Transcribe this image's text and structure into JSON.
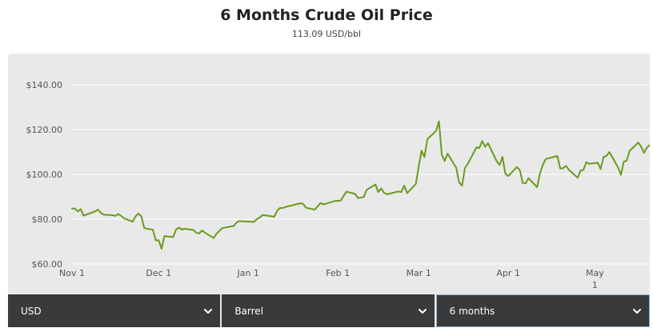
{
  "header": {
    "title": "6 Months Crude Oil Price",
    "subtitle": "113.09 USD/bbl"
  },
  "controls": {
    "currency": "USD",
    "unit": "Barrel",
    "period": "6 months"
  },
  "icons": {
    "dropdown": "chevron-down-icon"
  },
  "colors": {
    "line": "#6a9a1f",
    "panel": "#e9e9e9",
    "grid": "#ffffff",
    "control_bg": "#3a3a3a",
    "control_text": "#ffffff"
  },
  "chart_data": {
    "type": "line",
    "title": "6 Months Crude Oil Price",
    "subtitle": "113.09 USD/bbl",
    "xlabel": "",
    "ylabel": "",
    "ylim": [
      60,
      140
    ],
    "yticks": [
      "$60.00",
      "$80.00",
      "$100.00",
      "$120.00",
      "$140.00"
    ],
    "xticks": [
      "Nov 1",
      "Dec 1",
      "Jan 1",
      "Feb 1",
      "Mar 1",
      "Apr 1",
      "May 1"
    ],
    "grid": true,
    "legend": "none",
    "series": [
      {
        "values": [
          [
            "2021-11-01",
            84.8
          ],
          [
            "2021-11-02",
            84.7
          ],
          [
            "2021-11-03",
            83.5
          ],
          [
            "2021-11-04",
            84.5
          ],
          [
            "2021-11-05",
            81.6
          ],
          [
            "2021-11-08",
            83.0
          ],
          [
            "2021-11-09",
            83.5
          ],
          [
            "2021-11-10",
            84.3
          ],
          [
            "2021-11-11",
            82.8
          ],
          [
            "2021-11-12",
            82.0
          ],
          [
            "2021-11-15",
            81.8
          ],
          [
            "2021-11-16",
            81.5
          ],
          [
            "2021-11-17",
            82.3
          ],
          [
            "2021-11-18",
            81.5
          ],
          [
            "2021-11-19",
            80.4
          ],
          [
            "2021-11-22",
            78.9
          ],
          [
            "2021-11-23",
            81.3
          ],
          [
            "2021-11-24",
            82.5
          ],
          [
            "2021-11-25",
            81.3
          ],
          [
            "2021-11-26",
            76.0
          ],
          [
            "2021-11-29",
            75.3
          ],
          [
            "2021-11-30",
            70.5
          ],
          [
            "2021-12-01",
            70.6
          ],
          [
            "2021-12-02",
            66.8
          ],
          [
            "2021-12-03",
            72.5
          ],
          [
            "2021-12-06",
            72.0
          ],
          [
            "2021-12-07",
            75.4
          ],
          [
            "2021-12-08",
            76.2
          ],
          [
            "2021-12-09",
            75.4
          ],
          [
            "2021-12-10",
            75.7
          ],
          [
            "2021-12-13",
            75.2
          ],
          [
            "2021-12-14",
            74.0
          ],
          [
            "2021-12-15",
            73.6
          ],
          [
            "2021-12-16",
            75.0
          ],
          [
            "2021-12-17",
            74.0
          ],
          [
            "2021-12-20",
            71.6
          ],
          [
            "2021-12-21",
            73.5
          ],
          [
            "2021-12-22",
            74.8
          ],
          [
            "2021-12-23",
            76.0
          ],
          [
            "2021-12-27",
            77.0
          ],
          [
            "2021-12-28",
            78.6
          ],
          [
            "2021-12-29",
            79.2
          ],
          [
            "2021-12-30",
            79.0
          ],
          [
            "2021-12-31",
            79.0
          ],
          [
            "2022-01-03",
            78.8
          ],
          [
            "2022-01-04",
            80.0
          ],
          [
            "2022-01-05",
            80.8
          ],
          [
            "2022-01-06",
            81.9
          ],
          [
            "2022-01-07",
            81.7
          ],
          [
            "2022-01-10",
            81.1
          ],
          [
            "2022-01-11",
            83.7
          ],
          [
            "2022-01-12",
            85.0
          ],
          [
            "2022-01-13",
            85.0
          ],
          [
            "2022-01-14",
            85.5
          ],
          [
            "2022-01-18",
            86.8
          ],
          [
            "2022-01-19",
            87.1
          ],
          [
            "2022-01-20",
            86.9
          ],
          [
            "2022-01-21",
            85.1
          ],
          [
            "2022-01-24",
            84.3
          ],
          [
            "2022-01-25",
            85.6
          ],
          [
            "2022-01-26",
            87.3
          ],
          [
            "2022-01-27",
            86.6
          ],
          [
            "2022-01-28",
            87.0
          ],
          [
            "2022-01-31",
            88.1
          ],
          [
            "2022-02-01",
            88.2
          ],
          [
            "2022-02-02",
            88.3
          ],
          [
            "2022-02-03",
            90.3
          ],
          [
            "2022-02-04",
            92.3
          ],
          [
            "2022-02-07",
            91.3
          ],
          [
            "2022-02-08",
            89.4
          ],
          [
            "2022-02-09",
            89.7
          ],
          [
            "2022-02-10",
            89.9
          ],
          [
            "2022-02-11",
            93.1
          ],
          [
            "2022-02-14",
            95.5
          ],
          [
            "2022-02-15",
            92.1
          ],
          [
            "2022-02-16",
            93.7
          ],
          [
            "2022-02-17",
            91.8
          ],
          [
            "2022-02-18",
            91.1
          ],
          [
            "2022-02-22",
            92.4
          ],
          [
            "2022-02-23",
            92.1
          ],
          [
            "2022-02-24",
            95.0
          ],
          [
            "2022-02-25",
            91.6
          ],
          [
            "2022-02-28",
            95.7
          ],
          [
            "2022-03-01",
            103.4
          ],
          [
            "2022-03-02",
            110.6
          ],
          [
            "2022-03-03",
            107.7
          ],
          [
            "2022-03-04",
            115.7
          ],
          [
            "2022-03-07",
            119.4
          ],
          [
            "2022-03-08",
            123.7
          ],
          [
            "2022-03-09",
            108.7
          ],
          [
            "2022-03-10",
            106.0
          ],
          [
            "2022-03-11",
            109.3
          ],
          [
            "2022-03-14",
            103.0
          ],
          [
            "2022-03-15",
            96.4
          ],
          [
            "2022-03-16",
            95.0
          ],
          [
            "2022-03-17",
            102.9
          ],
          [
            "2022-03-18",
            104.7
          ],
          [
            "2022-03-21",
            112.1
          ],
          [
            "2022-03-22",
            111.8
          ],
          [
            "2022-03-23",
            114.9
          ],
          [
            "2022-03-24",
            112.3
          ],
          [
            "2022-03-25",
            113.9
          ],
          [
            "2022-03-28",
            105.9
          ],
          [
            "2022-03-29",
            104.2
          ],
          [
            "2022-03-30",
            107.8
          ],
          [
            "2022-03-31",
            100.3
          ],
          [
            "2022-04-01",
            99.3
          ],
          [
            "2022-04-04",
            103.3
          ],
          [
            "2022-04-05",
            101.9
          ],
          [
            "2022-04-06",
            96.2
          ],
          [
            "2022-04-07",
            96.0
          ],
          [
            "2022-04-08",
            98.3
          ],
          [
            "2022-04-11",
            94.3
          ],
          [
            "2022-04-12",
            100.6
          ],
          [
            "2022-04-13",
            104.3
          ],
          [
            "2022-04-14",
            106.9
          ],
          [
            "2022-04-18",
            108.2
          ],
          [
            "2022-04-19",
            102.6
          ],
          [
            "2022-04-20",
            102.8
          ],
          [
            "2022-04-21",
            103.8
          ],
          [
            "2022-04-22",
            102.1
          ],
          [
            "2022-04-25",
            98.5
          ],
          [
            "2022-04-26",
            101.7
          ],
          [
            "2022-04-27",
            102.0
          ],
          [
            "2022-04-28",
            105.4
          ],
          [
            "2022-04-29",
            104.7
          ],
          [
            "2022-05-02",
            105.2
          ],
          [
            "2022-05-03",
            102.4
          ],
          [
            "2022-05-04",
            107.8
          ],
          [
            "2022-05-05",
            108.3
          ],
          [
            "2022-05-06",
            110.0
          ],
          [
            "2022-05-09",
            103.1
          ],
          [
            "2022-05-10",
            99.8
          ],
          [
            "2022-05-11",
            105.7
          ],
          [
            "2022-05-12",
            106.1
          ],
          [
            "2022-05-13",
            110.5
          ],
          [
            "2022-05-16",
            114.2
          ],
          [
            "2022-05-17",
            112.4
          ],
          [
            "2022-05-18",
            109.6
          ],
          [
            "2022-05-19",
            112.0
          ],
          [
            "2022-05-20",
            113.09
          ]
        ]
      }
    ]
  }
}
